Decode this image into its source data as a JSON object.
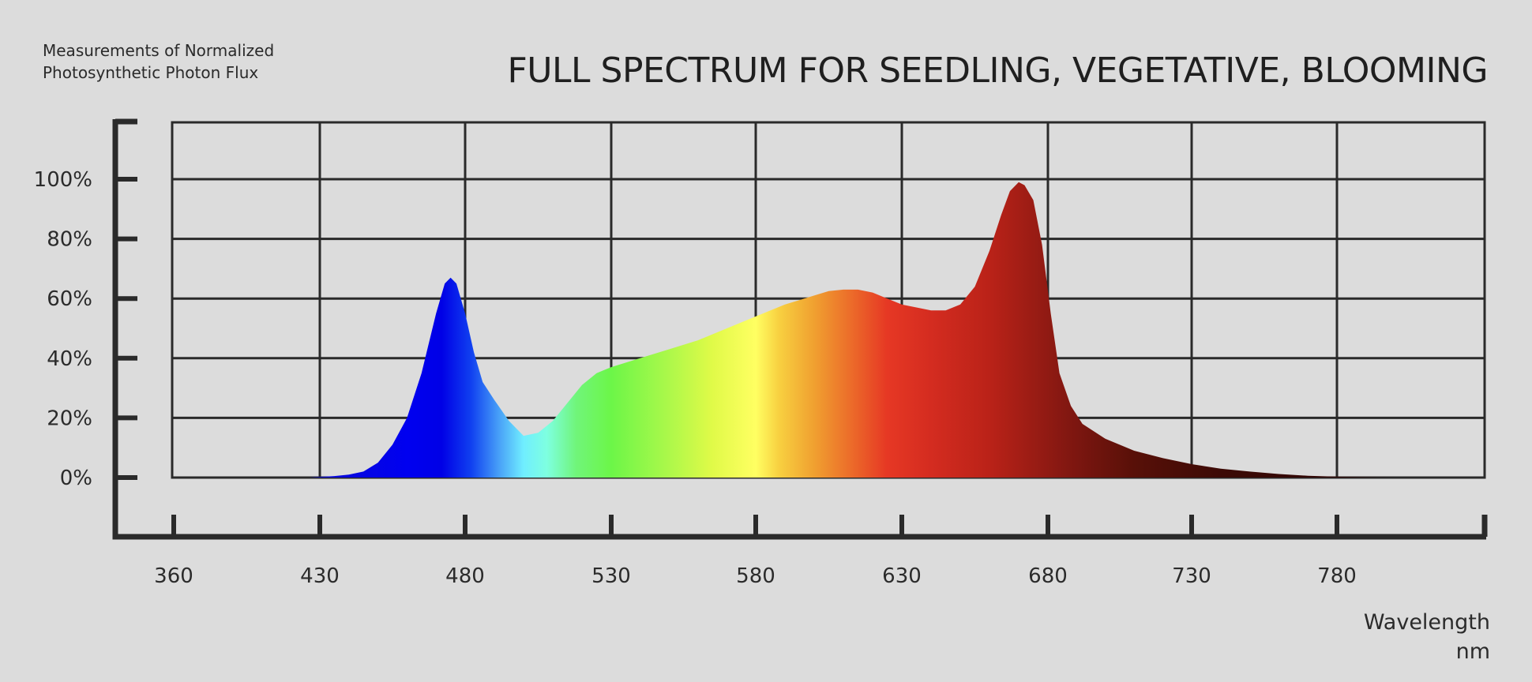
{
  "chart_data": {
    "type": "area",
    "title": "FULL SPECTRUM FOR SEEDLING, VEGETATIVE, BLOOMING",
    "subtitle_lines": [
      "Measurements of Normalized",
      "Photosynthetic Photon Flux"
    ],
    "xlabel_lines": [
      "Wavelength",
      "nm"
    ],
    "x_ticks": [
      360,
      430,
      480,
      530,
      580,
      630,
      680,
      730,
      780
    ],
    "y_ticks": [
      0,
      20,
      40,
      60,
      80,
      100
    ],
    "y_tick_labels": [
      "0%",
      "20%",
      "40%",
      "60%",
      "80%",
      "100%"
    ],
    "xlim": [
      360,
      830
    ],
    "ylim": [
      0,
      118
    ],
    "grid": true,
    "series": [
      {
        "x": [
          410,
          425,
          435,
          440,
          445,
          450,
          455,
          460,
          465,
          470,
          473,
          475,
          477,
          480,
          483,
          486,
          490,
          495,
          500,
          505,
          510,
          515,
          520,
          525,
          530,
          540,
          550,
          560,
          570,
          580,
          590,
          600,
          605,
          610,
          615,
          620,
          625,
          630,
          635,
          640,
          645,
          650,
          655,
          660,
          664,
          667,
          670,
          672,
          675,
          678,
          681,
          684,
          688,
          692,
          700,
          710,
          720,
          730,
          740,
          750,
          760,
          770,
          780,
          790,
          800,
          810
        ],
        "y": [
          0,
          0,
          0.5,
          1,
          2,
          5,
          11,
          20,
          35,
          55,
          65,
          67,
          65,
          55,
          42,
          32,
          26,
          19,
          14,
          15,
          19,
          25,
          31,
          35,
          37,
          40,
          43,
          46,
          50,
          54,
          58,
          61,
          62.5,
          63,
          63,
          62,
          60,
          58,
          57,
          56,
          56,
          58,
          64,
          76,
          88,
          96,
          99,
          98,
          93,
          78,
          55,
          35,
          24,
          18,
          13,
          9,
          6.5,
          4.5,
          3,
          2,
          1.2,
          0.6,
          0.3,
          0.1,
          0,
          0
        ]
      }
    ]
  }
}
